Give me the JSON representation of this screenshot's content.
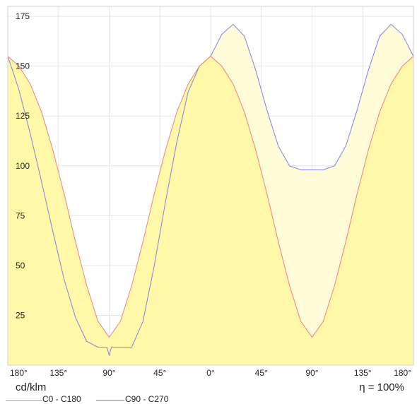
{
  "chart_data": {
    "type": "area",
    "unit_label": "cd/klm",
    "efficiency_label": "η = 100%",
    "y_ticks": [
      25,
      50,
      75,
      100,
      125,
      150,
      175
    ],
    "ylim": [
      0,
      180
    ],
    "x_ticks": [
      "180°",
      "135°",
      "90°",
      "45°",
      "0°",
      "45°",
      "90°",
      "135°",
      "180°"
    ],
    "xlim": [
      -180,
      180
    ],
    "grid": true,
    "legend_placement": "bottom-left",
    "series": [
      {
        "name": "C0 - C180",
        "color": "#f08080",
        "fill": "#fff8a8",
        "x": [
          -180,
          -170,
          -160,
          -150,
          -140,
          -130,
          -120,
          -110,
          -100,
          -90,
          -80,
          -70,
          -60,
          -50,
          -40,
          -30,
          -20,
          -10,
          0,
          10,
          20,
          30,
          40,
          50,
          60,
          70,
          80,
          90,
          100,
          110,
          120,
          130,
          140,
          150,
          160,
          170,
          180
        ],
        "y": [
          155,
          150,
          141,
          127,
          108,
          86,
          62,
          40,
          22,
          14,
          22,
          40,
          62,
          86,
          108,
          127,
          141,
          150,
          155,
          150,
          141,
          127,
          108,
          86,
          62,
          40,
          22,
          14,
          22,
          40,
          62,
          86,
          108,
          127,
          141,
          150,
          155
        ]
      },
      {
        "name": "C90 - C270",
        "color": "#8080e0",
        "fill": "#fffbd8",
        "x": [
          -180,
          -170,
          -160,
          -150,
          -140,
          -130,
          -120,
          -110,
          -100,
          -95,
          -92,
          -90,
          -88,
          -85,
          -80,
          -70,
          -60,
          -50,
          -40,
          -30,
          -20,
          -10,
          0,
          10,
          20,
          30,
          40,
          50,
          60,
          70,
          80,
          90,
          100,
          110,
          120,
          130,
          140,
          150,
          160,
          170,
          180
        ],
        "y": [
          155,
          138,
          116,
          92,
          67,
          43,
          24,
          12,
          9,
          9,
          9,
          5,
          9,
          9,
          9,
          9,
          22,
          50,
          82,
          112,
          137,
          150,
          155,
          166,
          171,
          165,
          148,
          128,
          110,
          100,
          98,
          98,
          98,
          100,
          110,
          128,
          148,
          165,
          171,
          166,
          155
        ]
      }
    ]
  }
}
